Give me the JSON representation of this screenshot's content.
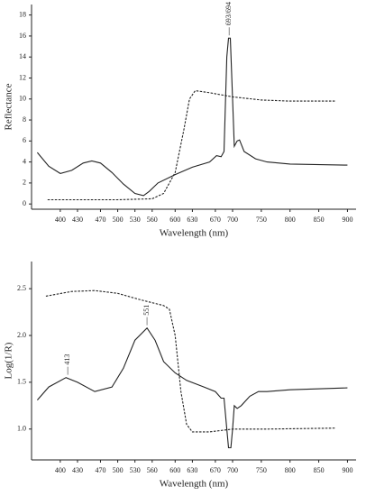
{
  "chart_data": [
    {
      "type": "line",
      "ylabel": "Reflectance",
      "xlabel": "Wavelength (nm)",
      "xlim": [
        350,
        915
      ],
      "ylim": [
        -0.5,
        19
      ],
      "xticks": [
        400,
        430,
        470,
        500,
        530,
        560,
        600,
        630,
        670,
        700,
        750,
        800,
        850,
        900
      ],
      "yticks": [
        0,
        2,
        4,
        6,
        8,
        10,
        12,
        14,
        16,
        18
      ],
      "series": [
        {
          "color": "#222222",
          "style": "solid",
          "x": [
            360,
            380,
            400,
            420,
            440,
            455,
            470,
            490,
            510,
            530,
            545,
            555,
            570,
            600,
            630,
            660,
            672,
            680,
            685,
            690,
            693,
            696,
            700,
            703,
            708,
            712,
            720,
            740,
            760,
            800,
            900
          ],
          "values": [
            4.9,
            3.6,
            2.9,
            3.2,
            3.9,
            4.1,
            3.9,
            3.0,
            1.9,
            1.0,
            0.8,
            1.2,
            2.0,
            2.8,
            3.5,
            4.0,
            4.6,
            4.5,
            5.0,
            14,
            15.8,
            15.8,
            10,
            5.5,
            6.0,
            6.1,
            5.0,
            4.3,
            4.0,
            3.8,
            3.7
          ]
        },
        {
          "color": "#222222",
          "style": "dashed",
          "x": [
            378,
            500,
            560,
            580,
            600,
            615,
            625,
            635,
            660,
            700,
            750,
            800,
            880
          ],
          "values": [
            0.4,
            0.4,
            0.5,
            1,
            3,
            7,
            10,
            10.8,
            10.6,
            10.2,
            9.9,
            9.8,
            9.8
          ]
        }
      ],
      "annotations": [
        {
          "text": "693/694",
          "x": 694,
          "y": 15.8
        }
      ]
    },
    {
      "type": "line",
      "ylabel": "Log(1/R)",
      "xlabel": "Wavelength (nm)",
      "xlim": [
        350,
        915
      ],
      "ylim": [
        0.67,
        2.79
      ],
      "xticks": [
        400,
        430,
        470,
        500,
        530,
        560,
        600,
        630,
        670,
        700,
        750,
        800,
        850,
        900
      ],
      "yticks": [
        {
          "value": 1,
          "label": "1.0"
        },
        1.5,
        {
          "value": 2,
          "label": "2.0"
        },
        2.5
      ],
      "series": [
        {
          "color": "#222222",
          "style": "solid",
          "x": [
            360,
            380,
            410,
            430,
            460,
            490,
            510,
            530,
            551,
            565,
            580,
            600,
            620,
            650,
            670,
            680,
            685,
            690,
            693,
            697,
            700,
            703,
            708,
            715,
            730,
            745,
            760,
            800,
            900
          ],
          "values": [
            1.31,
            1.45,
            1.55,
            1.5,
            1.4,
            1.45,
            1.65,
            1.95,
            2.08,
            1.95,
            1.72,
            1.6,
            1.52,
            1.45,
            1.4,
            1.33,
            1.33,
            1.0,
            0.8,
            0.8,
            1.0,
            1.25,
            1.22,
            1.25,
            1.35,
            1.4,
            1.4,
            1.42,
            1.44
          ]
        },
        {
          "color": "#222222",
          "style": "dashed",
          "x": [
            375,
            420,
            460,
            500,
            540,
            580,
            590,
            600,
            610,
            620,
            630,
            660,
            700,
            760,
            880
          ],
          "values": [
            2.42,
            2.47,
            2.48,
            2.45,
            2.38,
            2.32,
            2.28,
            2.0,
            1.4,
            1.05,
            0.97,
            0.97,
            1.0,
            1.0,
            1.01
          ]
        }
      ],
      "annotations": [
        {
          "text": "551",
          "x": 551,
          "y": 2.08
        },
        {
          "text": "413",
          "x": 413,
          "y": 1.55
        }
      ]
    }
  ]
}
